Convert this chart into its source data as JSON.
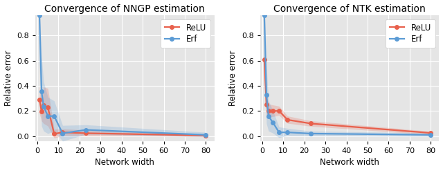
{
  "nngp": {
    "title": "Convergence of NNGP estimation",
    "xlabel": "Network width",
    "ylabel": "Relative error",
    "relu": {
      "x": [
        1,
        2,
        3,
        5,
        8,
        12,
        23,
        80
      ],
      "y": [
        0.29,
        0.197,
        0.248,
        0.228,
        0.018,
        0.03,
        0.023,
        0.005
      ],
      "y_lo": [
        0.18,
        0.12,
        0.1,
        0.08,
        -0.015,
        0.003,
        0.002,
        -0.002
      ],
      "y_hi": [
        0.4,
        0.28,
        0.39,
        0.38,
        0.055,
        0.058,
        0.048,
        0.014
      ]
    },
    "erf": {
      "x": [
        1,
        2,
        3,
        5,
        8,
        12,
        23,
        80
      ],
      "y": [
        0.96,
        0.355,
        0.235,
        0.16,
        0.158,
        0.022,
        0.05,
        0.01
      ],
      "y_lo": [
        0.55,
        0.08,
        0.04,
        0.02,
        0.04,
        -0.04,
        0.015,
        -0.006
      ],
      "y_hi": [
        1.05,
        0.63,
        0.43,
        0.31,
        0.28,
        0.085,
        0.09,
        0.03
      ]
    },
    "ylim": [
      -0.04,
      0.96
    ],
    "yticks": [
      0.0,
      0.2,
      0.4,
      0.6,
      0.8
    ],
    "xlim": [
      -1,
      84
    ]
  },
  "ntk": {
    "title": "Convergence of NTK estimation",
    "xlabel": "Network width",
    "ylabel": "Relative error",
    "relu": {
      "x": [
        1,
        2,
        3,
        5,
        8,
        12,
        23,
        80
      ],
      "y": [
        0.61,
        0.25,
        0.2,
        0.2,
        0.2,
        0.13,
        0.1,
        0.025
      ],
      "y_lo": [
        0.5,
        0.17,
        0.15,
        0.155,
        0.165,
        0.102,
        0.078,
        0.012
      ],
      "y_hi": [
        0.72,
        0.33,
        0.255,
        0.248,
        0.238,
        0.16,
        0.122,
        0.038
      ]
    },
    "erf": {
      "x": [
        1,
        2,
        3,
        5,
        8,
        12,
        23,
        80
      ],
      "y": [
        0.96,
        0.33,
        0.158,
        0.11,
        0.03,
        0.03,
        0.02,
        0.01
      ],
      "y_lo": [
        0.55,
        0.1,
        0.04,
        0.025,
        -0.012,
        0.004,
        0.002,
        -0.003
      ],
      "y_hi": [
        1.05,
        0.56,
        0.28,
        0.205,
        0.073,
        0.062,
        0.04,
        0.024
      ]
    },
    "ylim": [
      -0.04,
      0.96
    ],
    "yticks": [
      0.0,
      0.2,
      0.4,
      0.6,
      0.8
    ],
    "xlim": [
      -1,
      84
    ]
  },
  "relu_color": "#E8604C",
  "erf_color": "#5B9BD5",
  "bg_color": "#E5E5E5",
  "fig_color": "#FFFFFF",
  "marker": "o",
  "markersize": 4,
  "linewidth": 1.6,
  "alpha_fill": 0.22,
  "xticks": [
    0,
    10,
    20,
    30,
    40,
    50,
    60,
    70,
    80
  ],
  "title_fontsize": 10,
  "label_fontsize": 8.5,
  "tick_fontsize": 8,
  "legend_fontsize": 8.5
}
